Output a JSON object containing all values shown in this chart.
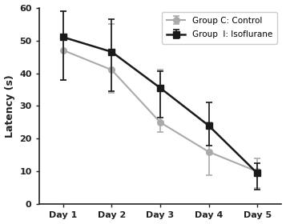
{
  "days": [
    1,
    2,
    3,
    4,
    5
  ],
  "day_labels": [
    "Day 1",
    "Day 2",
    "Day 3",
    "Day 4",
    "Day 5"
  ],
  "control_means": [
    47,
    41,
    25,
    16,
    10
  ],
  "control_err_up": [
    12,
    14,
    16,
    9,
    4
  ],
  "control_err_dn": [
    9,
    7,
    3,
    7,
    5
  ],
  "isoflurane_means": [
    51,
    46.5,
    35.5,
    24,
    9.5
  ],
  "isoflurane_err_up": [
    8,
    10,
    5,
    7,
    3
  ],
  "isoflurane_err_dn": [
    13,
    12,
    9,
    6,
    5
  ],
  "control_color": "#aaaaaa",
  "isoflurane_color": "#1a1a1a",
  "ylabel": "Latency (s)",
  "ylim": [
    0,
    60
  ],
  "yticks": [
    0,
    10,
    20,
    30,
    40,
    50,
    60
  ],
  "legend_control": "Group C: Control",
  "legend_isoflurane": "Group  I: Isoflurane",
  "background_color": "#ffffff",
  "plot_bg_color": "#ffffff"
}
